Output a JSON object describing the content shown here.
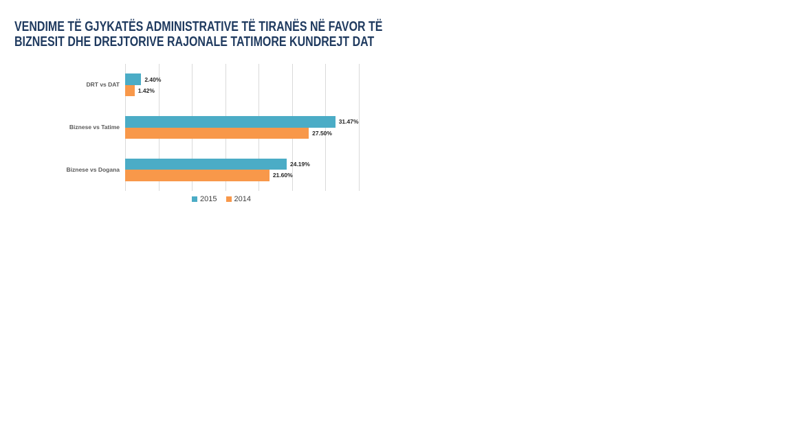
{
  "page": {
    "background_color": "#FFFFFF"
  },
  "title": {
    "line1": "VENDIME TË GJYKATËS ADMINISTRATIVE TË TIRANËS NË FAVOR TË",
    "line2": "BIZNESIT DHE DREJTORIVE RAJONALE TATIMORE KUNDREJT DAT",
    "color": "#1F3A5F"
  },
  "chart_data": {
    "type": "bar",
    "orientation": "horizontal",
    "title": "VENDIME TË GJYKATËS ADMINISTRATIVE TË TIRANËS NË FAVOR TË BIZNESIT DHE DREJTORIVE RAJONALE TATIMORE KUNDREJT DAT",
    "categories": [
      "DRT vs DAT",
      "Biznese vs Tatime",
      "Biznese vs Dogana"
    ],
    "series": [
      {
        "name": "2015",
        "color": "#4BACC6",
        "values": [
          2.4,
          31.47,
          24.19
        ],
        "labels": [
          "2.40%",
          "31.47%",
          "24.19%"
        ]
      },
      {
        "name": "2014",
        "color": "#F8984A",
        "values": [
          1.42,
          27.5,
          21.6
        ],
        "labels": [
          "1.42%",
          "27.50%",
          "21.60%"
        ]
      }
    ],
    "xlim": [
      0,
      35
    ],
    "gridline_step": 5,
    "grid": true,
    "gridline_color": "#D9D9D9",
    "legend_position": "bottom",
    "xlabel": "",
    "ylabel": ""
  }
}
